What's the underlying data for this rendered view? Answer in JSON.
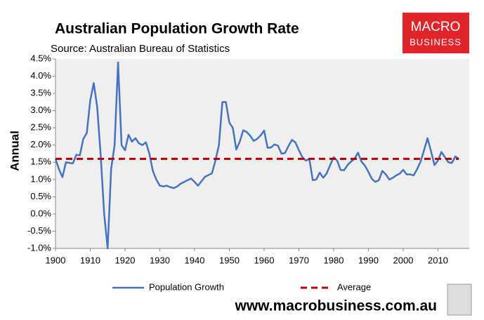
{
  "chart_data": {
    "type": "line",
    "title": "Australian Population Growth Rate",
    "subtitle": "Source: Australian Bureau of Statistics",
    "ylabel": "Annual",
    "logo": [
      "MACRO",
      "BUSINESS"
    ],
    "footer": "www.macrobusiness.com.au",
    "x": [
      1900,
      1901,
      1902,
      1903,
      1904,
      1905,
      1906,
      1907,
      1908,
      1909,
      1910,
      1911,
      1912,
      1913,
      1914,
      1915,
      1916,
      1917,
      1918,
      1919,
      1920,
      1921,
      1922,
      1923,
      1924,
      1925,
      1926,
      1927,
      1928,
      1929,
      1930,
      1931,
      1932,
      1933,
      1934,
      1935,
      1936,
      1937,
      1938,
      1939,
      1940,
      1941,
      1942,
      1943,
      1944,
      1945,
      1946,
      1947,
      1948,
      1949,
      1950,
      1951,
      1952,
      1953,
      1954,
      1955,
      1956,
      1957,
      1958,
      1959,
      1960,
      1961,
      1962,
      1963,
      1964,
      1965,
      1966,
      1967,
      1968,
      1969,
      1970,
      1971,
      1972,
      1973,
      1974,
      1975,
      1976,
      1977,
      1978,
      1979,
      1980,
      1981,
      1982,
      1983,
      1984,
      1985,
      1986,
      1987,
      1988,
      1989,
      1990,
      1991,
      1992,
      1993,
      1994,
      1995,
      1996,
      1997,
      1998,
      1999,
      2000,
      2001,
      2002,
      2003,
      2004,
      2005,
      2006,
      2007,
      2008,
      2009,
      2010,
      2011,
      2012,
      2013,
      2014,
      2015,
      2016
    ],
    "series": [
      {
        "name": "Population Growth",
        "color": "#4472c4",
        "values": [
          1.6,
          1.3,
          1.07,
          1.5,
          1.48,
          1.47,
          1.72,
          1.7,
          2.18,
          2.35,
          3.3,
          3.8,
          3.1,
          1.7,
          0.0,
          -1.0,
          1.3,
          2.0,
          4.4,
          2.0,
          1.85,
          2.3,
          2.1,
          2.2,
          2.05,
          2.0,
          2.08,
          1.75,
          1.25,
          1.0,
          0.82,
          0.8,
          0.82,
          0.78,
          0.75,
          0.8,
          0.88,
          0.93,
          0.98,
          1.03,
          0.93,
          0.82,
          0.95,
          1.08,
          1.13,
          1.18,
          1.55,
          2.0,
          3.25,
          3.25,
          2.65,
          2.5,
          1.87,
          2.1,
          2.43,
          2.38,
          2.27,
          2.12,
          2.18,
          2.28,
          2.42,
          1.92,
          1.93,
          2.02,
          1.98,
          1.75,
          1.77,
          1.97,
          2.15,
          2.08,
          1.85,
          1.65,
          1.55,
          1.6,
          0.98,
          1.0,
          1.2,
          1.05,
          1.18,
          1.42,
          1.65,
          1.55,
          1.28,
          1.27,
          1.42,
          1.52,
          1.6,
          1.78,
          1.52,
          1.4,
          1.22,
          1.02,
          0.93,
          0.98,
          1.25,
          1.15,
          1.0,
          1.05,
          1.12,
          1.17,
          1.28,
          1.15,
          1.15,
          1.12,
          1.3,
          1.52,
          1.85,
          2.2,
          1.82,
          1.42,
          1.55,
          1.8,
          1.65,
          1.5,
          1.48,
          1.67,
          1.6
        ]
      },
      {
        "name": "Average",
        "color": "#c00000",
        "dashed": true,
        "x": [
          1900,
          2016
        ],
        "values": [
          1.6,
          1.6
        ]
      }
    ],
    "xlim": [
      1900,
      2019
    ],
    "xticks": [
      1900,
      1910,
      1920,
      1930,
      1940,
      1950,
      1960,
      1970,
      1980,
      1990,
      2000,
      2010
    ],
    "ylim": [
      -1,
      4.5
    ],
    "yticks": [
      {
        "value": -1,
        "label": "-1.0%"
      },
      {
        "value": -0.5,
        "label": "-0.5%"
      },
      {
        "value": 0,
        "label": "0.0%"
      },
      {
        "value": 0.5,
        "label": "0.5%"
      },
      {
        "value": 1,
        "label": "1.0%"
      },
      {
        "value": 1.5,
        "label": "1.5%"
      },
      {
        "value": 2,
        "label": "2.0%"
      },
      {
        "value": 2.5,
        "label": "2.5%"
      },
      {
        "value": 3,
        "label": "3.0%"
      },
      {
        "value": 3.5,
        "label": "3.5%"
      },
      {
        "value": 4,
        "label": "4.0%"
      },
      {
        "value": 4.5,
        "label": "4.5%"
      }
    ],
    "grid": false,
    "legend": "bottom"
  }
}
